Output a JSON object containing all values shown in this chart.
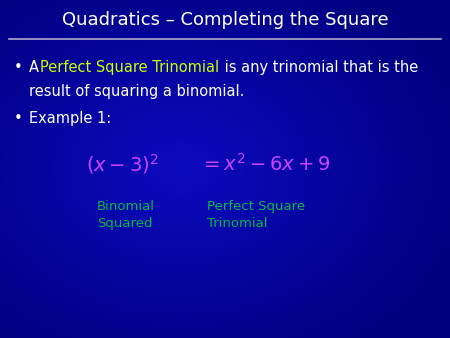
{
  "title": "Quadratics – Completing the Square",
  "title_color": "#ffffff",
  "title_fontsize": 13,
  "bg_color": "#000080",
  "line_color": "#8888aa",
  "highlight_color": "#ccff00",
  "normal_text_color": "#ffffff",
  "formula_color": "#cc44ff",
  "label_color": "#00bb44",
  "fontsize_body": 10.5,
  "fontsize_formula": 14,
  "fontsize_label": 9.5,
  "bullet1_line1_a": "A ",
  "bullet1_line1_b": "Perfect Square Trinomial",
  "bullet1_line1_c": " is any trinomial that is the",
  "bullet1_line2": "result of squaring a binomial.",
  "bullet2": "Example 1:",
  "label1_line1": "Binomial",
  "label1_line2": "Squared",
  "label2_line1": "Perfect Square",
  "label2_line2": "Trinomial"
}
